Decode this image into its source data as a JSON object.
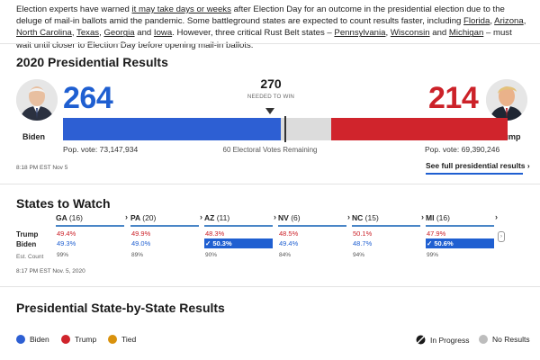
{
  "intro": {
    "p1": "Election experts have warned ",
    "link1": "it may take days or weeks",
    "p2": " after Election Day for an outcome in the presidential election due to the deluge of mail-in ballots amid the pandemic. Some battleground states are expected to count results faster, including ",
    "s1": "Florida",
    "c1": ", ",
    "s2": "Arizona",
    "c2": ", ",
    "s3": "North Carolina",
    "c3": ", ",
    "s4": "Texas",
    "c4": ", ",
    "s5": "Georgia",
    "c5": " and ",
    "s6": "Iowa",
    "p3": ". However, three critical Rust Belt states – ",
    "s7": "Pennsylvania",
    "c6": ", ",
    "s8": "Wisconsin",
    "c7": " and ",
    "s9": "Michigan",
    "p4": " – must wait until closer to Election Day before opening mail-in ballots."
  },
  "results": {
    "title": "2020 Presidential Results",
    "biden": {
      "name": "Biden",
      "ev": "264",
      "pop_vote": "Pop. vote: 73,147,934"
    },
    "trump": {
      "name": "Trump",
      "ev": "214",
      "pop_vote": "Pop. vote: 69,390,246"
    },
    "needed": "270",
    "needed_label": "NEEDED TO WIN",
    "remaining": "60 Electoral Votes Remaining",
    "updated": "8:18 PM EST Nov 5",
    "full_link": "See full presidential results ›",
    "bar": {
      "biden_ev": 264,
      "trump_ev": 214,
      "total_ev": 538
    }
  },
  "watch": {
    "title": "States to Watch",
    "row_trump": "Trump",
    "row_biden": "Biden",
    "row_est": "Est. Count",
    "updated": "8:17 PM EST Nov. 5, 2020",
    "states": [
      {
        "abbr": "GA",
        "ev": "(16)",
        "trump": "49.4%",
        "biden": "49.3%",
        "est": "99%",
        "winner": ""
      },
      {
        "abbr": "PA",
        "ev": "(20)",
        "trump": "49.9%",
        "biden": "49.0%",
        "est": "89%",
        "winner": ""
      },
      {
        "abbr": "AZ",
        "ev": "(11)",
        "trump": "48.3%",
        "biden": "✓ 50.3%",
        "est": "90%",
        "winner": "biden"
      },
      {
        "abbr": "NV",
        "ev": "(6)",
        "trump": "48.5%",
        "biden": "49.4%",
        "est": "84%",
        "winner": ""
      },
      {
        "abbr": "NC",
        "ev": "(15)",
        "trump": "50.1%",
        "biden": "48.7%",
        "est": "94%",
        "winner": ""
      },
      {
        "abbr": "MI",
        "ev": "(16)",
        "trump": "47.9%",
        "biden": "✓ 50.6%",
        "est": "99%",
        "winner": "biden"
      }
    ]
  },
  "state_results": {
    "title": "Presidential State-by-State Results"
  },
  "legend": {
    "biden": "Biden",
    "trump": "Trump",
    "tied": "Tied",
    "in_progress": "In Progress",
    "no_results": "No Results"
  },
  "colors": {
    "biden": "#2d5fd3",
    "trump": "#d0242c",
    "tied": "#d9920d",
    "remaining": "#dcdcdc"
  },
  "icons": {
    "chevron": "chevron-right-icon",
    "checkmark": "checkmark-icon"
  }
}
